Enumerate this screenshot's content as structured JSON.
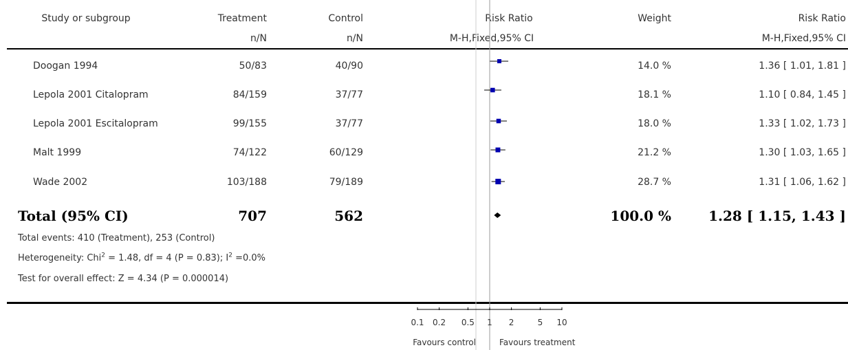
{
  "header": {
    "col_study": "Study or subgroup",
    "col_treatment": "Treatment",
    "col_control": "Control",
    "col_rr_plot": "Risk Ratio",
    "col_weight": "Weight",
    "col_rr": "Risk Ratio",
    "sub_treatment": "n/N",
    "sub_control": "n/N",
    "sub_rr_plot": "M-H,Fixed,95% CI",
    "sub_rr": "M-H,Fixed,95% CI"
  },
  "studies": [
    {
      "name": "Doogan 1994",
      "treatment": "50/83",
      "control": "40/90",
      "weight": "14.0 %",
      "ci_text": "1.36 [ 1.01, 1.81 ]"
    },
    {
      "name": "Lepola 2001 Citalopram",
      "treatment": "84/159",
      "control": "37/77",
      "weight": "18.1 %",
      "ci_text": "1.10 [ 0.84, 1.45 ]"
    },
    {
      "name": "Lepola 2001 Escitalopram",
      "treatment": "99/155",
      "control": "37/77",
      "weight": "18.0 %",
      "ci_text": "1.33 [ 1.02, 1.73 ]"
    },
    {
      "name": "Malt 1999",
      "treatment": "74/122",
      "control": "60/129",
      "weight": "21.2 %",
      "ci_text": "1.30 [ 1.03, 1.65 ]"
    },
    {
      "name": "Wade 2002",
      "treatment": "103/188",
      "control": "79/189",
      "weight": "28.7 %",
      "ci_text": "1.31 [ 1.06, 1.62 ]"
    }
  ],
  "total": {
    "label": "Total (95% CI)",
    "treatment": "707",
    "control": "562",
    "weight": "100.0 %",
    "ci_text": "1.28 [ 1.15, 1.43 ]"
  },
  "footer": {
    "events": "Total events: 410 (Treatment), 253 (Control)",
    "heterogeneity_pre": "Heterogeneity: Chi",
    "heterogeneity_mid": " = 1.48, df = 4 (P = 0.83); I",
    "heterogeneity_post": " =0.0%",
    "superscript": "2",
    "overall_effect": "Test for overall effect: Z = 4.34 (P = 0.000014)"
  },
  "axis": {
    "favours_left": "Favours control",
    "favours_right": "Favours treatment"
  },
  "chart_data": {
    "type": "scatter",
    "scale": "log",
    "xlim": [
      0.1,
      10
    ],
    "null_value": 1,
    "ticks": [
      {
        "value": 0.1,
        "label": "0.1"
      },
      {
        "value": 0.2,
        "label": "0.2"
      },
      {
        "value": 0.5,
        "label": "0.5"
      },
      {
        "value": 1,
        "label": "1"
      },
      {
        "value": 2,
        "label": "2"
      },
      {
        "value": 5,
        "label": "5"
      },
      {
        "value": 10,
        "label": "10"
      }
    ],
    "points": [
      {
        "study": "Doogan 1994",
        "rr": 1.36,
        "lower": 1.01,
        "upper": 1.81,
        "weight": 14.0
      },
      {
        "study": "Lepola 2001 Citalopram",
        "rr": 1.1,
        "lower": 0.84,
        "upper": 1.45,
        "weight": 18.1
      },
      {
        "study": "Lepola 2001 Escitalopram",
        "rr": 1.33,
        "lower": 1.02,
        "upper": 1.73,
        "weight": 18.0
      },
      {
        "study": "Malt 1999",
        "rr": 1.3,
        "lower": 1.03,
        "upper": 1.65,
        "weight": 21.2
      },
      {
        "study": "Wade 2002",
        "rr": 1.31,
        "lower": 1.06,
        "upper": 1.62,
        "weight": 28.7
      }
    ],
    "pooled": {
      "rr": 1.28,
      "lower": 1.15,
      "upper": 1.43
    },
    "colors": {
      "marker": "#0000b0",
      "line": "#000000",
      "null_line": "#999999",
      "diamond": "#000000"
    }
  }
}
